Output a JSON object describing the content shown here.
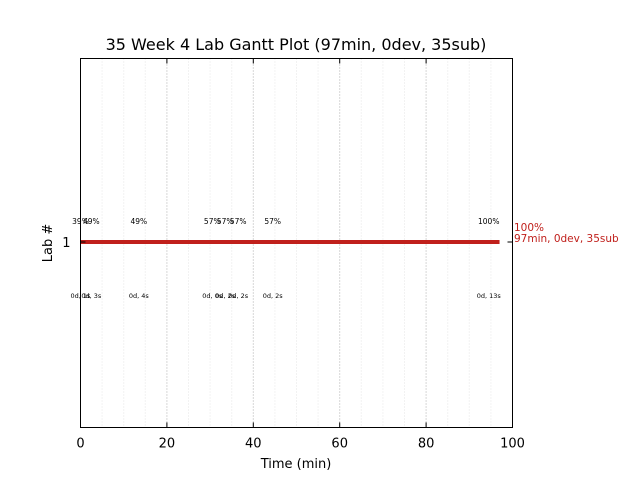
{
  "chart_data": {
    "type": "gantt",
    "title": "35 Week 4 Lab Gantt Plot (97min, 0dev, 35sub)",
    "xlabel": "Time (min)",
    "ylabel": "Lab #",
    "xlim": [
      0,
      100
    ],
    "x_ticks": [
      0,
      20,
      40,
      60,
      80,
      100
    ],
    "y_categories": [
      "1"
    ],
    "grid": "vertical dotted",
    "bar": {
      "lab": "1",
      "start": 0,
      "end": 97,
      "color": "#c0201c",
      "end_label_line1": "100%",
      "end_label_line2": "97min, 0dev, 35sub"
    },
    "events": [
      {
        "x": 0,
        "pct": "39%",
        "detail": "0d, 1s"
      },
      {
        "x": 2.5,
        "pct": "49%",
        "detail": "0d, 3s"
      },
      {
        "x": 13.5,
        "pct": "49%",
        "detail": "0d, 4s"
      },
      {
        "x": 30.5,
        "pct": "57%",
        "detail": "0d, 0s"
      },
      {
        "x": 33.5,
        "pct": "57%",
        "detail": "0d, 2s"
      },
      {
        "x": 36.5,
        "pct": "57%",
        "detail": "0d, 2s"
      },
      {
        "x": 44.5,
        "pct": "57%",
        "detail": "0d, 2s"
      },
      {
        "x": 94.5,
        "pct": "100%",
        "detail": "0d, 13s"
      }
    ]
  }
}
